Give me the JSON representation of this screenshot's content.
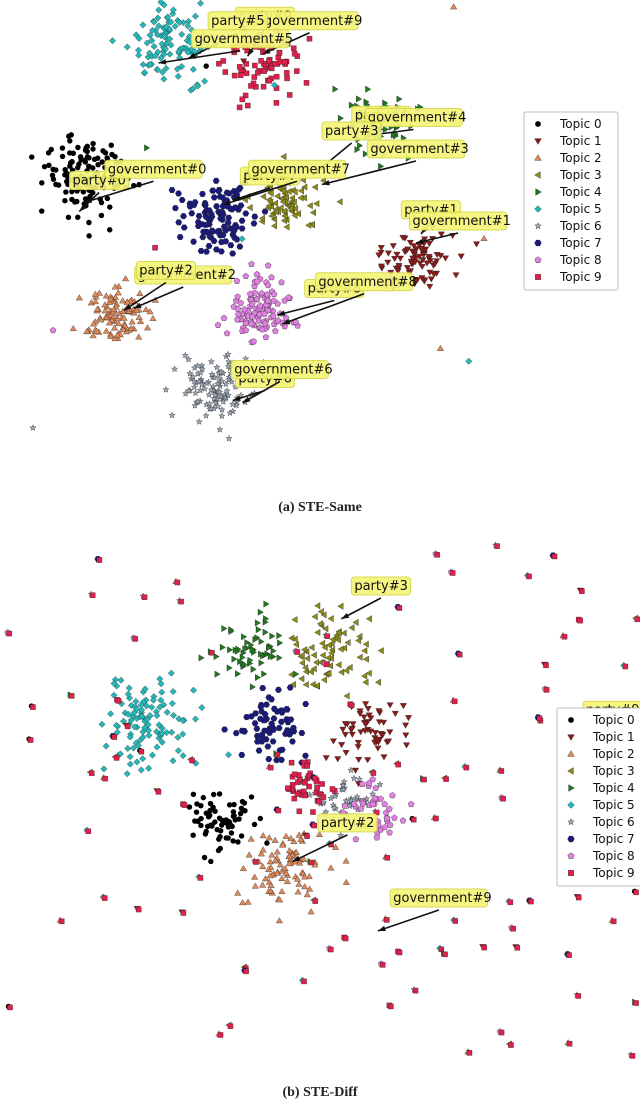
{
  "colors": {
    "topics": [
      "#000000",
      "#8b1a1a",
      "#e08a5a",
      "#8c8c1a",
      "#1f7a1f",
      "#26b8b8",
      "#9aa5b5",
      "#1a1a7a",
      "#e080e0",
      "#e0204a"
    ],
    "label_bg": "#f5f578",
    "label_border": "#d6d64a"
  },
  "chart_data": [
    {
      "type": "scatter",
      "panel": "a",
      "caption": "(a) STE-Same",
      "legend": [
        "Topic 0",
        "Topic 1",
        "Topic 2",
        "Topic 3",
        "Topic 4",
        "Topic 5",
        "Topic 6",
        "Topic 7",
        "Topic 8",
        "Topic 9"
      ],
      "legend_placement": "right",
      "grid": false,
      "clusters": [
        {
          "topic": 0,
          "cx": -3.3,
          "cy": 1.1,
          "spread": 0.45,
          "n": 130
        },
        {
          "topic": 1,
          "cx": 3.4,
          "cy": -0.8,
          "spread": 0.35,
          "n": 90
        },
        {
          "topic": 2,
          "cx": -2.6,
          "cy": -2.0,
          "spread": 0.35,
          "n": 100
        },
        {
          "topic": 3,
          "cx": 0.8,
          "cy": 0.5,
          "spread": 0.35,
          "n": 80
        },
        {
          "topic": 4,
          "cx": 2.7,
          "cy": 2.3,
          "spread": 0.4,
          "n": 70
        },
        {
          "topic": 5,
          "cx": -1.6,
          "cy": 4.0,
          "spread": 0.45,
          "n": 110
        },
        {
          "topic": 6,
          "cx": -0.7,
          "cy": -3.6,
          "spread": 0.35,
          "n": 110
        },
        {
          "topic": 7,
          "cx": -0.6,
          "cy": 0.2,
          "spread": 0.4,
          "n": 110
        },
        {
          "topic": 8,
          "cx": 0.2,
          "cy": -1.9,
          "spread": 0.35,
          "n": 110
        },
        {
          "topic": 9,
          "cx": 0.3,
          "cy": 3.6,
          "spread": 0.4,
          "n": 80
        }
      ],
      "annotations": [
        {
          "text": "party#9",
          "x": 0.35,
          "y": 4.55,
          "tx": 0.0,
          "ty": 3.75
        },
        {
          "text": "government#9",
          "x": 1.25,
          "y": 4.45,
          "tx": 0.3,
          "ty": 3.8
        },
        {
          "text": "party#5",
          "x": -0.2,
          "y": 4.45,
          "tx": -1.2,
          "ty": 3.7
        },
        {
          "text": "government#5",
          "x": -0.15,
          "y": 4.05,
          "tx": -1.8,
          "ty": 3.6
        },
        {
          "text": "party#4",
          "x": 2.7,
          "y": 2.35,
          "tx": 2.6,
          "ty": 2.3
        },
        {
          "text": "government#4",
          "x": 3.35,
          "y": 2.3,
          "tx": 2.5,
          "ty": 2.0
        },
        {
          "text": "party#3",
          "x": 2.1,
          "y": 2.0,
          "tx": 1.3,
          "ty": 1.1
        },
        {
          "text": "government#3",
          "x": 3.4,
          "y": 1.6,
          "tx": 1.5,
          "ty": 0.9
        },
        {
          "text": "party#0",
          "x": -3.0,
          "y": 0.9,
          "tx": -3.4,
          "ty": 0.3
        },
        {
          "text": "government#0",
          "x": -1.9,
          "y": 1.15,
          "tx": -3.3,
          "ty": 0.5
        },
        {
          "text": "party#7",
          "x": 0.45,
          "y": 1.0,
          "tx": -0.3,
          "ty": 0.55
        },
        {
          "text": "government#7",
          "x": 1.0,
          "y": 1.15,
          "tx": -0.5,
          "ty": 0.45
        },
        {
          "text": "party#1",
          "x": 3.7,
          "y": 0.25,
          "tx": 3.5,
          "ty": -0.2
        },
        {
          "text": "government#1",
          "x": 4.25,
          "y": 0.0,
          "tx": 3.4,
          "ty": -0.4
        },
        {
          "text": "government#2",
          "x": -1.3,
          "y": -1.2,
          "tx": -2.3,
          "ty": -1.85
        },
        {
          "text": "party#2",
          "x": -1.65,
          "y": -1.1,
          "tx": -2.5,
          "ty": -1.9
        },
        {
          "text": "party#8",
          "x": 1.75,
          "y": -1.5,
          "tx": 0.6,
          "ty": -2.0
        },
        {
          "text": "government#8",
          "x": 2.35,
          "y": -1.35,
          "tx": 0.7,
          "ty": -2.2
        },
        {
          "text": "party#6",
          "x": 0.35,
          "y": -3.5,
          "tx": -0.3,
          "ty": -3.9
        },
        {
          "text": "government#6",
          "x": 0.65,
          "y": -3.3,
          "tx": -0.1,
          "ty": -3.95
        }
      ]
    },
    {
      "type": "scatter",
      "panel": "b",
      "caption": "(b) STE-Diff",
      "legend": [
        "Topic 0",
        "Topic 1",
        "Topic 2",
        "Topic 3",
        "Topic 4",
        "Topic 5",
        "Topic 6",
        "Topic 7",
        "Topic 8",
        "Topic 9"
      ],
      "legend_placement": "right",
      "grid": false,
      "clusters": [
        {
          "topic": 0,
          "cx": -1.4,
          "cy": -0.9,
          "spread": 0.25,
          "n": 70
        },
        {
          "topic": 1,
          "cx": 1.1,
          "cy": 0.6,
          "spread": 0.3,
          "n": 60
        },
        {
          "topic": 2,
          "cx": -0.4,
          "cy": -1.7,
          "spread": 0.35,
          "n": 90
        },
        {
          "topic": 3,
          "cx": 0.4,
          "cy": 2.0,
          "spread": 0.35,
          "n": 80
        },
        {
          "topic": 4,
          "cx": -0.8,
          "cy": 2.1,
          "spread": 0.3,
          "n": 60
        },
        {
          "topic": 5,
          "cx": -2.5,
          "cy": 0.8,
          "spread": 0.4,
          "n": 110
        },
        {
          "topic": 6,
          "cx": 0.6,
          "cy": -0.5,
          "spread": 0.25,
          "n": 45
        },
        {
          "topic": 7,
          "cx": -0.6,
          "cy": 0.7,
          "spread": 0.3,
          "n": 70
        },
        {
          "topic": 8,
          "cx": 1.2,
          "cy": -0.7,
          "spread": 0.25,
          "n": 40
        },
        {
          "topic": 9,
          "cx": 0.0,
          "cy": -0.3,
          "spread": 0.2,
          "n": 40
        }
      ],
      "annotations": [
        {
          "text": "party#3",
          "x": 1.25,
          "y": 3.1,
          "tx": 0.6,
          "ty": 2.6
        },
        {
          "text": "party#9",
          "x": 5.05,
          "y": 0.95,
          "tx": 4.45,
          "ty": 0.4
        },
        {
          "text": "party#2",
          "x": 0.7,
          "y": -1.0,
          "tx": -0.2,
          "ty": -1.6
        },
        {
          "text": "government#9",
          "x": 2.2,
          "y": -2.3,
          "tx": 1.2,
          "ty": -2.8
        }
      ]
    }
  ]
}
